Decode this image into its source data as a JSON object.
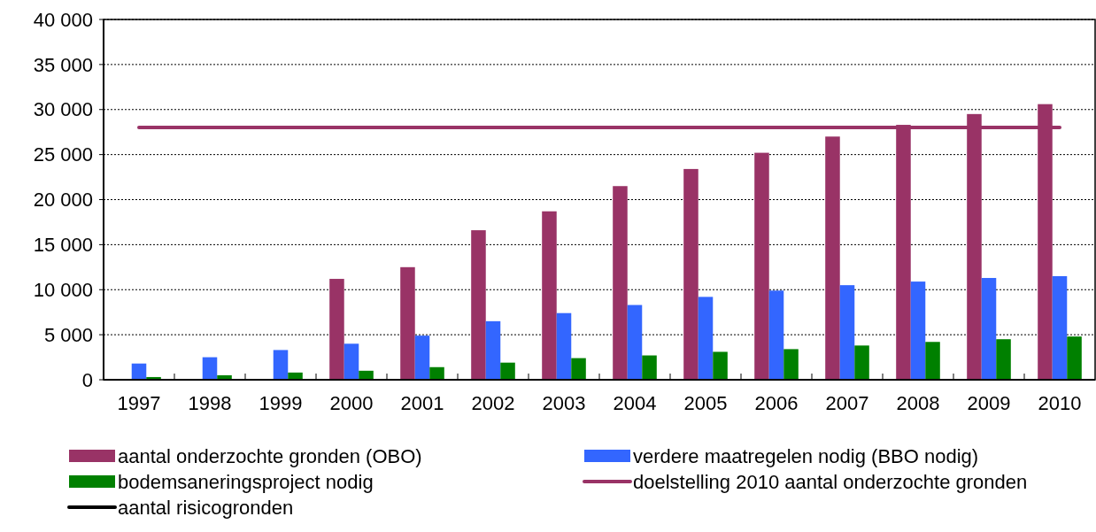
{
  "chart_data": {
    "type": "bar",
    "categories": [
      "1997",
      "1998",
      "1999",
      "2000",
      "2001",
      "2002",
      "2003",
      "2004",
      "2005",
      "2006",
      "2007",
      "2008",
      "2009",
      "2010"
    ],
    "series": [
      {
        "name": "aantal onderzochte gronden (OBO)",
        "color": "#993366",
        "values": [
          0,
          0,
          0,
          11200,
          12500,
          16600,
          18700,
          21500,
          23400,
          25200,
          27000,
          28300,
          29500,
          30600
        ]
      },
      {
        "name": "verdere maatregelen nodig (BBO nodig)",
        "color": "#3366ff",
        "values": [
          1800,
          2500,
          3300,
          4000,
          4900,
          6500,
          7400,
          8300,
          9200,
          9900,
          10500,
          10900,
          11300,
          11500
        ]
      },
      {
        "name": "bodemsaneringsproject nodig",
        "color": "#008000",
        "values": [
          300,
          500,
          800,
          1000,
          1400,
          1900,
          2400,
          2700,
          3100,
          3400,
          3800,
          4200,
          4500,
          4800
        ]
      },
      {
        "name": "doelstelling 2010 aantal onderzochte gronden",
        "type": "line",
        "color": "#993366",
        "values": [
          28000,
          28000,
          28000,
          28000,
          28000,
          28000,
          28000,
          28000,
          28000,
          28000,
          28000,
          28000,
          28000,
          28000
        ]
      },
      {
        "name": "aantal risicogronden",
        "type": "line",
        "color": "#000000",
        "values": [
          null,
          null,
          null,
          null,
          null,
          null,
          null,
          null,
          null,
          null,
          null,
          null,
          null,
          null
        ]
      }
    ],
    "ylim": [
      0,
      40000
    ],
    "yticks": [
      {
        "value": 0,
        "label": "0"
      },
      {
        "value": 5000,
        "label": "5 000"
      },
      {
        "value": 10000,
        "label": "10 000"
      },
      {
        "value": 15000,
        "label": "15 000"
      },
      {
        "value": 20000,
        "label": "20 000"
      },
      {
        "value": 25000,
        "label": "25 000"
      },
      {
        "value": 30000,
        "label": "30 000"
      },
      {
        "value": 35000,
        "label": "35 000"
      },
      {
        "value": 40000,
        "label": "40 000"
      }
    ],
    "grid": "y",
    "legend": "bottom"
  }
}
